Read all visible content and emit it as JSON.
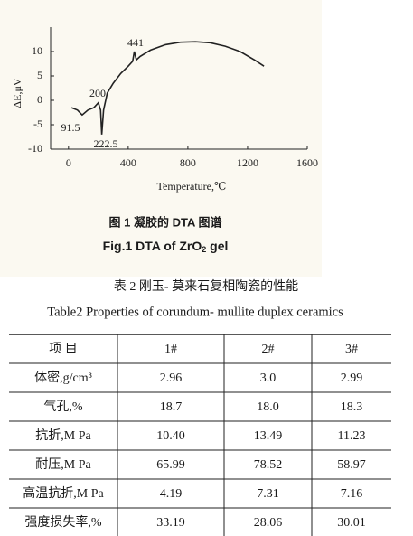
{
  "chart_data": {
    "type": "line",
    "x": [
      20,
      60,
      91.5,
      130,
      170,
      200,
      215,
      222.5,
      235,
      260,
      300,
      350,
      400,
      430,
      441,
      455,
      480,
      550,
      650,
      750,
      850,
      950,
      1050,
      1150,
      1250,
      1310
    ],
    "values": [
      -1.5,
      -2,
      -3,
      -2,
      -1.5,
      -0.5,
      -2,
      -7,
      -2,
      1.5,
      3.5,
      5.5,
      7,
      8,
      10,
      8.3,
      9,
      10.3,
      11.4,
      11.9,
      12,
      11.8,
      11.1,
      10,
      8.2,
      7
    ],
    "color": "#222222",
    "xlim": [
      -120,
      1600
    ],
    "ylim": [
      -10,
      15
    ],
    "xticks": [
      0,
      400,
      800,
      1200,
      1600
    ],
    "yticks": [
      -10,
      -5,
      0,
      5,
      10
    ],
    "xlabel": "Temperature,℃",
    "ylabel": "ΔE,μV",
    "annotations": [
      "441",
      "200",
      "91.5",
      "222.5"
    ]
  },
  "figure_caption": {
    "cn": "图 1  凝胶的 DTA 图谱",
    "en": "Fig.1  DTA of ZrO",
    "en_sub": "2",
    "en_tail": " gel"
  },
  "table": {
    "title_cn": "表 2  刚玉- 莫来石复相陶瓷的性能",
    "title_en": "Table2  Properties of corundum- mullite duplex ceramics",
    "header": [
      "项  目",
      "1#",
      "2#",
      "3#"
    ],
    "rows": [
      [
        "体密,g/cm³",
        "2.96",
        "3.0",
        "2.99"
      ],
      [
        "气孔,%",
        "18.7",
        "18.0",
        "18.3"
      ],
      [
        "抗折,M Pa",
        "10.40",
        "13.49",
        "11.23"
      ],
      [
        "耐压,M Pa",
        "65.99",
        "78.52",
        "58.97"
      ],
      [
        "高温抗折,M Pa",
        "4.19",
        "7.31",
        "7.16"
      ],
      [
        "强度损失率,%",
        "33.19",
        "28.06",
        "30.01"
      ]
    ]
  }
}
